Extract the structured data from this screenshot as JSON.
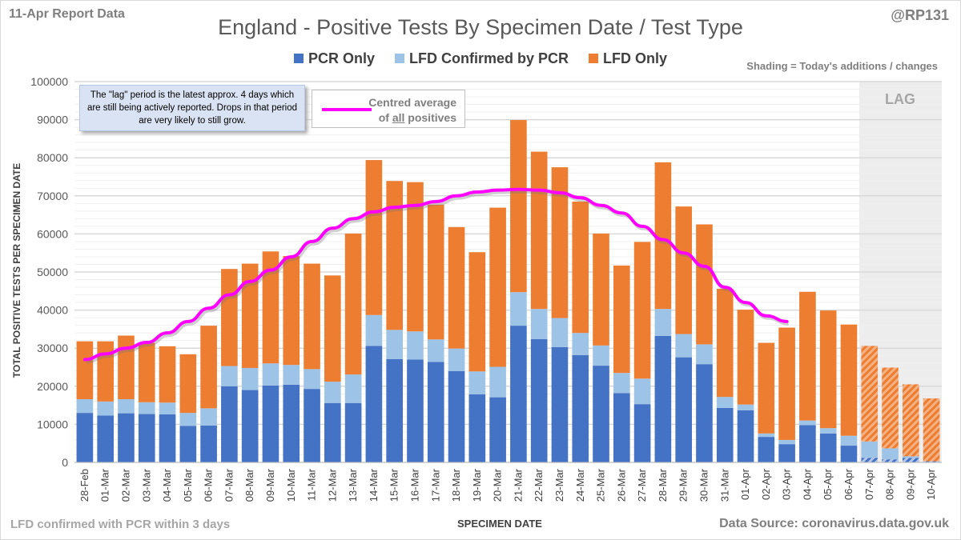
{
  "header": {
    "report_label": "11-Apr Report Data",
    "handle": "@RP131",
    "shading_note": "Shading = Today's additions / changes"
  },
  "footer": {
    "left_note": "LFD confirmed with PCR within 3 days",
    "source": "Data Source: coronavirus.data.gov.uk"
  },
  "annotations": {
    "lag_note": "The \"lag\" period is the latest approx. 4 days which are still being actively reported. Drops in that period are very likely to still grow.",
    "avg_line1": "Centred average",
    "avg_of": "of ",
    "avg_all": "all",
    "avg_rest": " positives",
    "lag_label": "LAG"
  },
  "colors": {
    "pcr": "#4472c4",
    "lfd_conf": "#9dc3e6",
    "lfd_only": "#ed7d31",
    "avg": "#ff00ff",
    "lag_bg": "#ededed"
  },
  "chart_data": {
    "type": "bar",
    "stacked": true,
    "title": "England - Positive Tests By Specimen Date / Test Type",
    "xlabel": "SPECIMEN DATE",
    "ylabel": "TOTAL POSITIVE TESTS PER SPECIMEN DATE",
    "ylim": [
      0,
      100000
    ],
    "yticks": [
      0,
      10000,
      20000,
      30000,
      40000,
      50000,
      60000,
      70000,
      80000,
      90000,
      100000
    ],
    "grid": true,
    "legend_placement": "top",
    "categories": [
      "28-Feb",
      "01-Mar",
      "02-Mar",
      "03-Mar",
      "04-Mar",
      "05-Mar",
      "06-Mar",
      "07-Mar",
      "08-Mar",
      "09-Mar",
      "10-Mar",
      "11-Mar",
      "12-Mar",
      "13-Mar",
      "14-Mar",
      "15-Mar",
      "16-Mar",
      "17-Mar",
      "18-Mar",
      "19-Mar",
      "20-Mar",
      "21-Mar",
      "22-Mar",
      "23-Mar",
      "24-Mar",
      "25-Mar",
      "26-Mar",
      "27-Mar",
      "28-Mar",
      "29-Mar",
      "30-Mar",
      "31-Mar",
      "01-Apr",
      "02-Apr",
      "03-Apr",
      "04-Apr",
      "05-Apr",
      "06-Apr",
      "07-Apr",
      "08-Apr",
      "09-Apr",
      "10-Apr"
    ],
    "series": [
      {
        "name": "PCR Only",
        "values": [
          13000,
          12300,
          12900,
          12700,
          12600,
          9600,
          9700,
          20000,
          19000,
          20200,
          20400,
          19300,
          15600,
          15600,
          30600,
          27100,
          27000,
          26400,
          24000,
          17900,
          17100,
          35900,
          32400,
          30300,
          28200,
          25400,
          18200,
          15300,
          33200,
          27600,
          25800,
          14300,
          13700,
          6700,
          4800,
          9800,
          7600,
          4400,
          1200,
          800,
          1200,
          300
        ]
      },
      {
        "name": "LFD Confirmed by PCR",
        "values": [
          3600,
          3700,
          3700,
          3100,
          3100,
          3400,
          4500,
          5300,
          5800,
          5800,
          5200,
          5200,
          5600,
          7500,
          8100,
          7700,
          7400,
          5900,
          5900,
          6000,
          8000,
          8800,
          7900,
          7600,
          5800,
          5300,
          5300,
          6700,
          7100,
          6100,
          5200,
          2900,
          1500,
          900,
          1100,
          1200,
          1400,
          2600,
          4300,
          2900,
          400,
          0
        ]
      },
      {
        "name": "LFD Only",
        "values": [
          15200,
          15800,
          16700,
          15600,
          14800,
          15400,
          21700,
          25500,
          27400,
          29400,
          28600,
          27700,
          27900,
          37000,
          40700,
          39100,
          39200,
          35400,
          31900,
          31300,
          41800,
          45200,
          41300,
          39600,
          34500,
          29400,
          28200,
          35900,
          38500,
          33500,
          31500,
          28400,
          24900,
          23800,
          29500,
          33800,
          30900,
          29200,
          25100,
          21200,
          18900,
          16500
        ]
      }
    ],
    "lag_days": [
      "07-Apr",
      "08-Apr",
      "09-Apr",
      "10-Apr"
    ],
    "centred_average": {
      "name": "Centred average of all positives",
      "values": [
        27000,
        28500,
        30000,
        31500,
        34000,
        37000,
        40500,
        44000,
        47500,
        50500,
        54000,
        58000,
        61500,
        64000,
        65800,
        67000,
        67500,
        68500,
        70000,
        71000,
        71500,
        71700,
        71500,
        70800,
        69500,
        67500,
        65500,
        62000,
        58500,
        55000,
        51500,
        46000,
        42000,
        38500,
        37000
      ]
    }
  }
}
